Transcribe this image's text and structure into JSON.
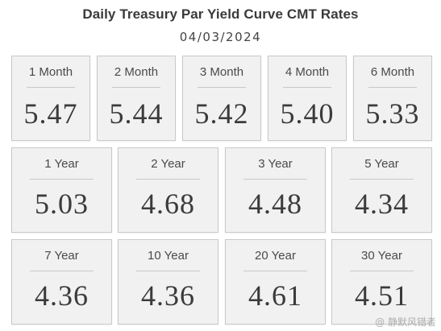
{
  "header": {
    "title": "Daily Treasury Par Yield Curve CMT Rates",
    "date": "04/03/2024"
  },
  "cards": [
    {
      "label": "1 Month",
      "value": "5.47"
    },
    {
      "label": "2 Month",
      "value": "5.44"
    },
    {
      "label": "3 Month",
      "value": "5.42"
    },
    {
      "label": "4 Month",
      "value": "5.40"
    },
    {
      "label": "6 Month",
      "value": "5.33"
    },
    {
      "label": "1 Year",
      "value": "5.03"
    },
    {
      "label": "2 Year",
      "value": "4.68"
    },
    {
      "label": "3 Year",
      "value": "4.48"
    },
    {
      "label": "5 Year",
      "value": "4.34"
    },
    {
      "label": "7 Year",
      "value": "4.36"
    },
    {
      "label": "10 Year",
      "value": "4.36"
    },
    {
      "label": "20 Year",
      "value": "4.61"
    },
    {
      "label": "30 Year",
      "value": "4.51"
    }
  ],
  "watermark": "@ 静默风错者"
}
